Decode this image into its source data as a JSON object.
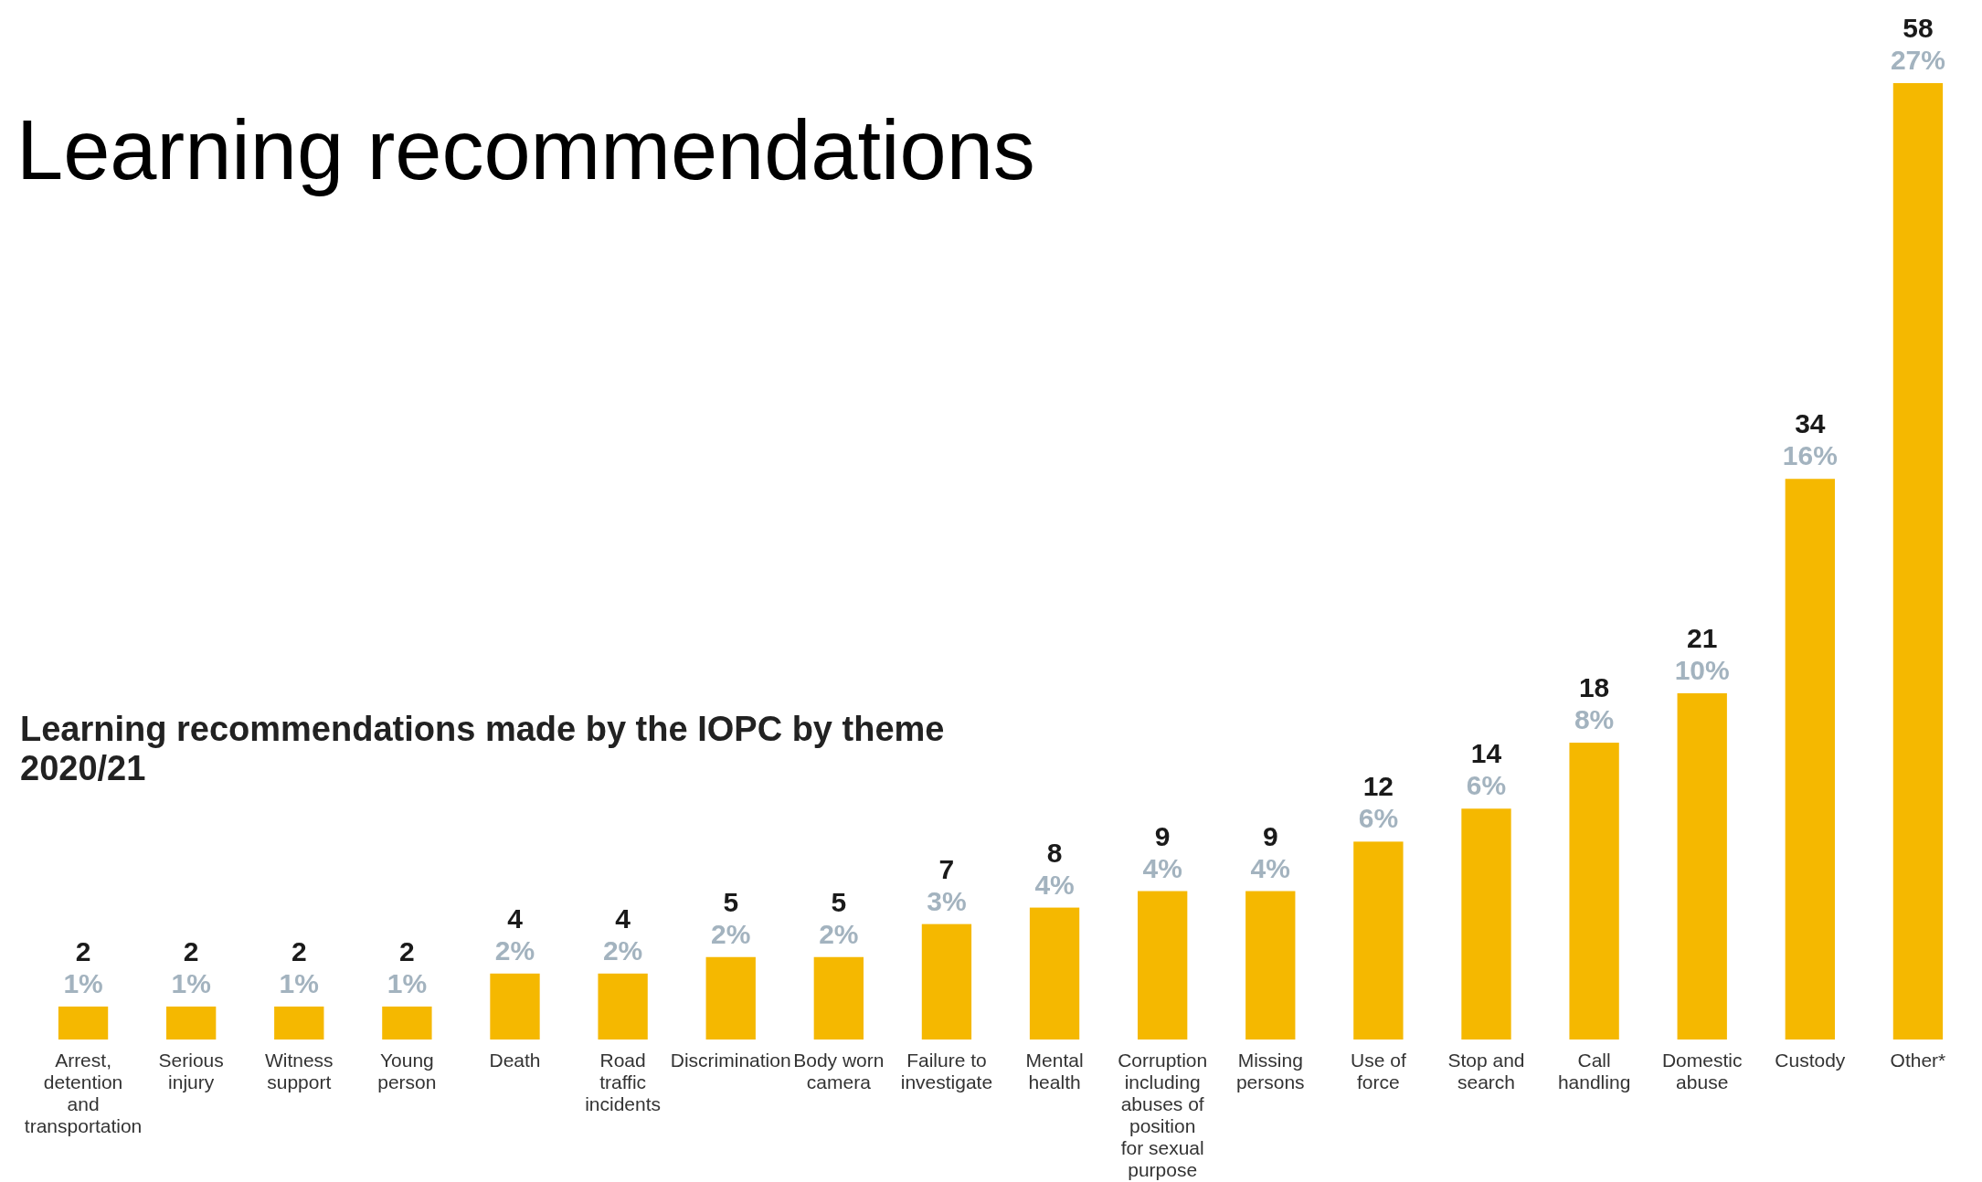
{
  "chart_data": {
    "type": "bar",
    "title": "Learning recommendations",
    "subtitle": "Learning recommendations made by the IOPC by theme 2020/21",
    "categories": [
      "Arrest, detention and transportation",
      "Serious injury",
      "Witness support",
      "Young person",
      "Death",
      "Road traffic incidents",
      "Discrimination",
      "Body worn camera",
      "Failure to investigate",
      "Mental health",
      "Corruption including abuses of position for sexual purpose",
      "Missing persons",
      "Use of force",
      "Stop and search",
      "Call handling",
      "Domestic abuse",
      "Custody",
      "Other*"
    ],
    "values": [
      2,
      2,
      2,
      2,
      4,
      4,
      5,
      5,
      7,
      8,
      9,
      9,
      12,
      14,
      18,
      21,
      34,
      58
    ],
    "color": "#f5b800",
    "data_labels": true,
    "annotations": [
      {
        "text": "1%",
        "x": "Arrest, detention and transportation",
        "y": 2
      },
      {
        "text": "1%",
        "x": "Serious injury",
        "y": 2
      },
      {
        "text": "1%",
        "x": "Witness support",
        "y": 2
      },
      {
        "text": "1%",
        "x": "Young person",
        "y": 2
      },
      {
        "text": "2%",
        "x": "Death",
        "y": 4
      },
      {
        "text": "2%",
        "x": "Road traffic incidents",
        "y": 4
      },
      {
        "text": "2%",
        "x": "Discrimination",
        "y": 5
      },
      {
        "text": "2%",
        "x": "Body worn camera",
        "y": 5
      },
      {
        "text": "3%",
        "x": "Failure to investigate",
        "y": 7
      },
      {
        "text": "4%",
        "x": "Mental health",
        "y": 8
      },
      {
        "text": "4%",
        "x": "Corruption including abuses of position for sexual purpose",
        "y": 9
      },
      {
        "text": "4%",
        "x": "Missing persons",
        "y": 9
      },
      {
        "text": "6%",
        "x": "Use of force",
        "y": 12
      },
      {
        "text": "6%",
        "x": "Stop and search",
        "y": 14
      },
      {
        "text": "8%",
        "x": "Call handling",
        "y": 18
      },
      {
        "text": "10%",
        "x": "Domestic abuse",
        "y": 21
      },
      {
        "text": "16%",
        "x": "Custody",
        "y": 34
      },
      {
        "text": "27%",
        "x": "Other*",
        "y": 58
      }
    ]
  }
}
